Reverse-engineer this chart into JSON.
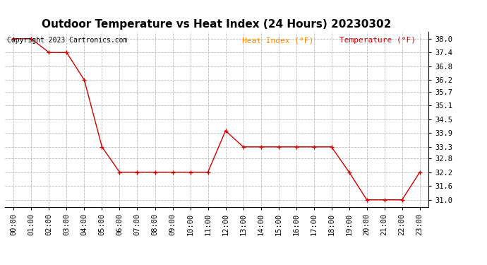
{
  "title": "Outdoor Temperature vs Heat Index (24 Hours) 20230302",
  "copyright": "Copyright 2023 Cartronics.com",
  "legend_heat_index": "Heat Index (°F)",
  "legend_temperature": "Temperature (°F)",
  "x_labels": [
    "00:00",
    "01:00",
    "02:00",
    "03:00",
    "04:00",
    "05:00",
    "06:00",
    "07:00",
    "08:00",
    "09:00",
    "10:00",
    "11:00",
    "12:00",
    "13:00",
    "14:00",
    "15:00",
    "16:00",
    "17:00",
    "18:00",
    "19:00",
    "20:00",
    "21:00",
    "22:00",
    "23:00"
  ],
  "hours": [
    0,
    1,
    2,
    3,
    4,
    5,
    6,
    7,
    8,
    9,
    10,
    11,
    12,
    13,
    14,
    15,
    16,
    17,
    18,
    19,
    20,
    21,
    22,
    23
  ],
  "temperature": [
    38.0,
    38.0,
    37.4,
    37.4,
    36.2,
    33.3,
    32.2,
    32.2,
    32.2,
    32.2,
    32.2,
    32.2,
    34.0,
    33.3,
    33.3,
    33.3,
    33.3,
    33.3,
    33.3,
    32.2,
    31.0,
    31.0,
    31.0,
    32.2
  ],
  "ylim_min": 30.7,
  "ylim_max": 38.3,
  "yticks": [
    38.0,
    37.4,
    36.8,
    36.2,
    35.7,
    35.1,
    34.5,
    33.9,
    33.3,
    32.8,
    32.2,
    31.6,
    31.0
  ],
  "line_color": "#cc0000",
  "background_color": "#ffffff",
  "grid_color": "#bbbbbb",
  "title_color": "#000000",
  "copyright_color": "#000000",
  "legend_heat_color": "#ff8800",
  "legend_temp_color": "#cc0000",
  "title_fontsize": 11,
  "copyright_fontsize": 7,
  "legend_fontsize": 8,
  "tick_fontsize": 7.5
}
